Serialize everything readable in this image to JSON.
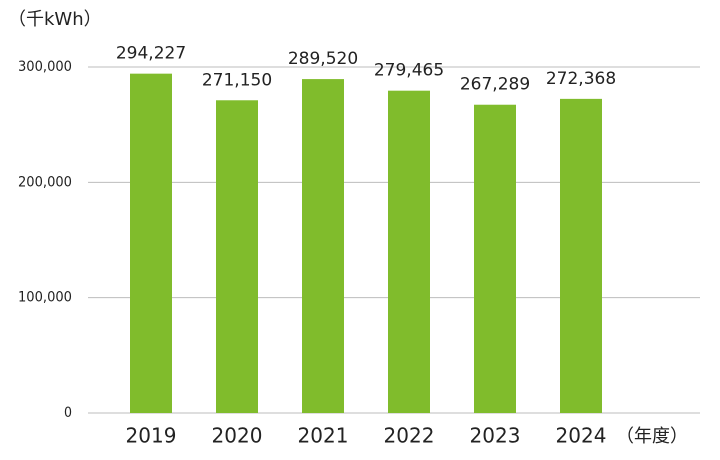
{
  "chart_data": {
    "type": "bar",
    "y_label": "（千kWh）",
    "x_label": "（年度）",
    "categories": [
      "2019",
      "2020",
      "2021",
      "2022",
      "2023",
      "2024"
    ],
    "values": [
      294227,
      271150,
      289520,
      279465,
      267289,
      272368
    ],
    "value_labels": [
      "294,227",
      "271,150",
      "289,520",
      "279,465",
      "267,289",
      "272,368"
    ],
    "color": "#80bc2c",
    "ylim": [
      0,
      300000
    ],
    "yticks": [
      0,
      {
        "value": 100000,
        "label": "100,000"
      },
      {
        "value": 200000,
        "label": "200,000"
      },
      {
        "value": 300000,
        "label": "300,000"
      }
    ],
    "grid": true
  }
}
